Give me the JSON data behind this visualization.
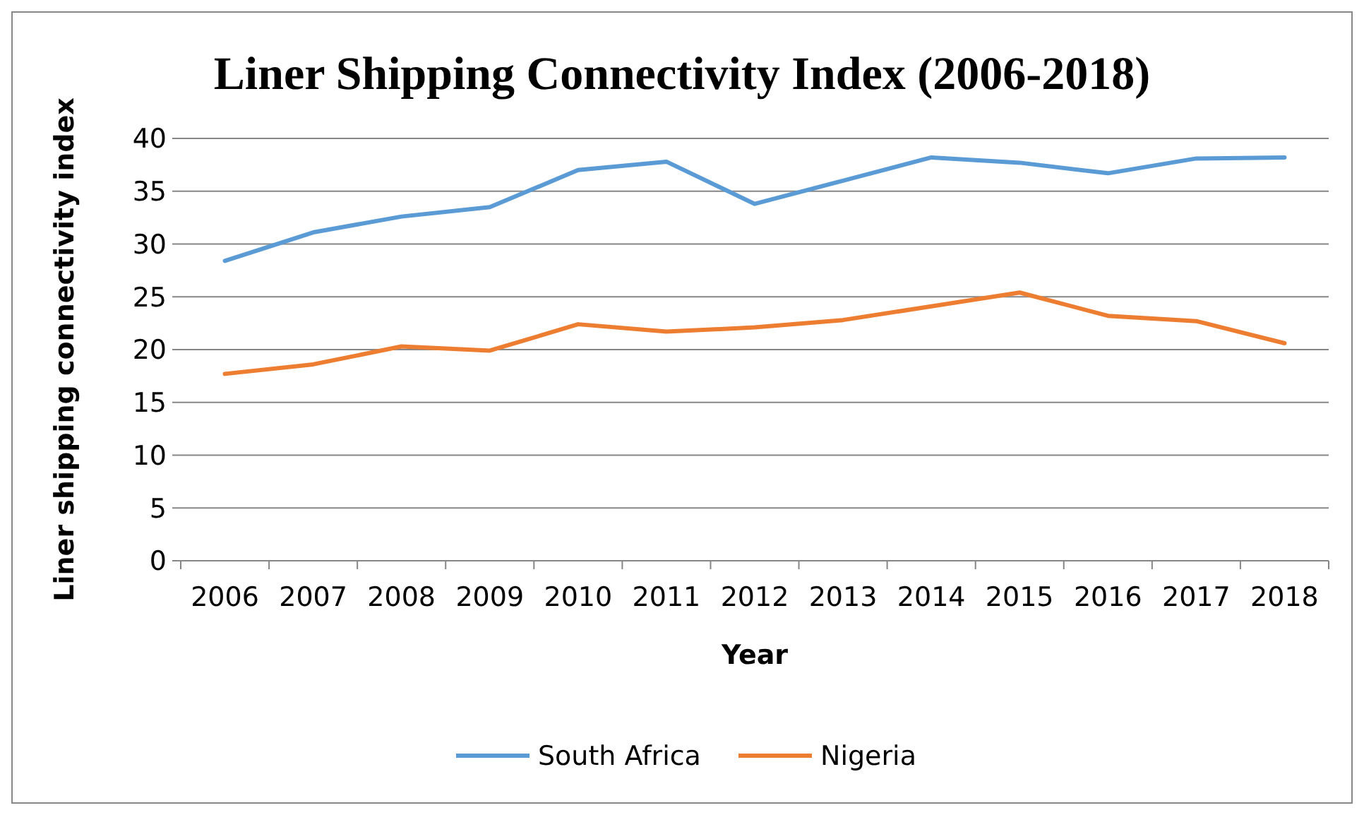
{
  "chart_data": {
    "type": "line",
    "title": "Liner Shipping Connectivity Index (2006-2018)",
    "xlabel": "Year",
    "ylabel": "Liner shipping connectivity index",
    "categories": [
      "2006",
      "2007",
      "2008",
      "2009",
      "2010",
      "2011",
      "2012",
      "2013",
      "2014",
      "2015",
      "2016",
      "2017",
      "2018"
    ],
    "series": [
      {
        "name": "South Africa",
        "color": "#5b9bd5",
        "values": [
          28.4,
          31.1,
          32.6,
          33.5,
          37.0,
          37.8,
          33.8,
          36.0,
          38.2,
          37.7,
          36.7,
          38.1,
          38.2
        ]
      },
      {
        "name": "Nigeria",
        "color": "#ed7d31",
        "values": [
          17.7,
          18.6,
          20.3,
          19.9,
          22.4,
          21.7,
          22.1,
          22.8,
          24.1,
          25.4,
          23.2,
          22.7,
          20.6
        ]
      }
    ],
    "ylim": [
      0,
      40
    ],
    "yticks": [
      0,
      5,
      10,
      15,
      20,
      25,
      30,
      35,
      40
    ],
    "grid": "y",
    "legend": "bottom",
    "marker": "none",
    "line_style": "solid"
  }
}
